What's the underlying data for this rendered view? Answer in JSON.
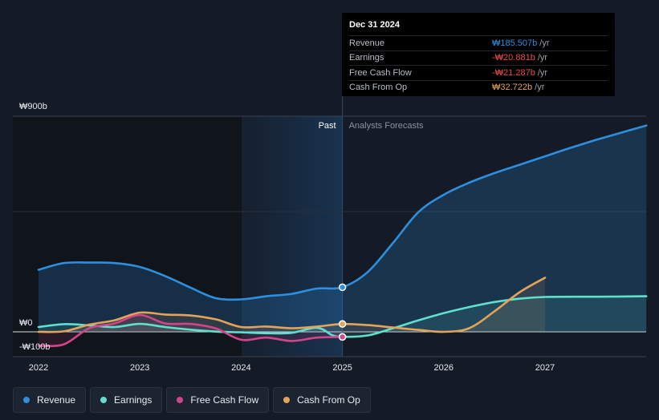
{
  "chart_data": {
    "type": "line",
    "currency": "₩",
    "y_unit": "billions",
    "y_labels": [
      {
        "value": 900,
        "text": "₩900b"
      },
      {
        "value": 0,
        "text": "₩0"
      },
      {
        "value": -100,
        "text": "-₩100b"
      }
    ],
    "ylim": [
      -100,
      900
    ],
    "xlim": [
      2021.8,
      2028.0
    ],
    "x_ticks": [
      "2022",
      "2023",
      "2024",
      "2025",
      "2026",
      "2027"
    ],
    "divider_x": 2025.0,
    "past_label": "Past",
    "forecast_label": "Analysts Forecasts",
    "series": [
      {
        "name": "Revenue",
        "color": "#2e8fe0",
        "area": true,
        "x": [
          2022.0,
          2022.25,
          2022.5,
          2022.75,
          2023.0,
          2023.25,
          2023.5,
          2023.75,
          2024.0,
          2024.25,
          2024.5,
          2024.75,
          2025.0,
          2025.25,
          2025.5,
          2025.75,
          2026.0,
          2026.25,
          2026.5,
          2026.75,
          2027.0,
          2027.25,
          2027.5,
          2027.75,
          2028.0
        ],
        "values": [
          258,
          286,
          288,
          286,
          270,
          232,
          184,
          140,
          135,
          148,
          158,
          180,
          185.507,
          249,
          370,
          498,
          570,
          620,
          660,
          695,
          730,
          765,
          798,
          828,
          858
        ]
      },
      {
        "name": "Earnings",
        "color": "#5fe0cf",
        "area": true,
        "x": [
          2022.0,
          2022.25,
          2022.5,
          2022.75,
          2023.0,
          2023.25,
          2023.5,
          2023.75,
          2024.0,
          2024.25,
          2024.5,
          2024.75,
          2024.9,
          2025.0,
          2025.25,
          2025.5,
          2025.75,
          2026.0,
          2026.25,
          2026.5,
          2026.75,
          2027.0,
          2027.5,
          2028.0
        ],
        "values": [
          20,
          32,
          27,
          20,
          33,
          20,
          9,
          1,
          -2,
          -6,
          -4,
          17,
          -14,
          -20.881,
          -15,
          15,
          48,
          78,
          103,
          124,
          138,
          145,
          146,
          148
        ]
      },
      {
        "name": "Free Cash Flow",
        "color": "#d2458a",
        "area": true,
        "x": [
          2022.0,
          2022.25,
          2022.5,
          2022.75,
          2023.0,
          2023.25,
          2023.5,
          2023.75,
          2024.0,
          2024.25,
          2024.5,
          2024.75,
          2025.0
        ],
        "values": [
          -58,
          -52,
          15,
          35,
          70,
          35,
          33,
          14,
          -33,
          -24,
          -38,
          -24,
          -21.287
        ]
      },
      {
        "name": "Cash From Op",
        "color": "#e3a45a",
        "area": true,
        "x": [
          2022.0,
          2022.25,
          2022.5,
          2022.75,
          2023.0,
          2023.25,
          2023.5,
          2023.75,
          2024.0,
          2024.25,
          2024.5,
          2024.75,
          2025.0,
          2025.25,
          2025.5,
          2025.75,
          2026.0,
          2026.25,
          2026.5,
          2026.75,
          2027.0
        ],
        "values": [
          0,
          2,
          30,
          48,
          80,
          72,
          68,
          52,
          20,
          22,
          15,
          22,
          32.722,
          28,
          18,
          8,
          0,
          15,
          85,
          165,
          225
        ]
      }
    ]
  },
  "tooltip": {
    "date": "Dec 31 2024",
    "rows": [
      {
        "label": "Revenue",
        "value": "₩185.507b",
        "unit": "/yr",
        "color": "#2e8fe0"
      },
      {
        "label": "Earnings",
        "value": "-₩20.881b",
        "unit": "/yr",
        "color": "#ee4b4b"
      },
      {
        "label": "Free Cash Flow",
        "value": "-₩21.287b",
        "unit": "/yr",
        "color": "#ee4b4b"
      },
      {
        "label": "Cash From Op",
        "value": "₩32.722b",
        "unit": "/yr",
        "color": "#e3a45a"
      }
    ]
  },
  "legend": [
    {
      "label": "Revenue",
      "color": "#2e8fe0"
    },
    {
      "label": "Earnings",
      "color": "#5fe0cf"
    },
    {
      "label": "Free Cash Flow",
      "color": "#d2458a"
    },
    {
      "label": "Cash From Op",
      "color": "#e3a45a"
    }
  ]
}
